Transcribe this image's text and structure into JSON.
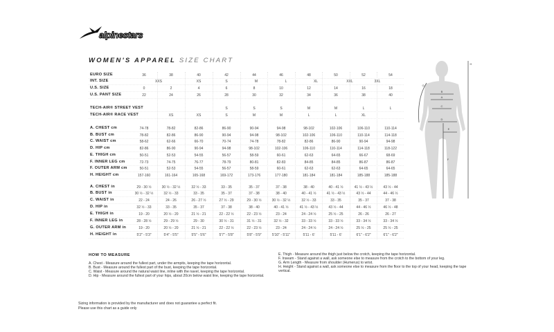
{
  "brand": {
    "logo_text": "alpinestars"
  },
  "title": {
    "bold": "WOMEN'S APPAREL",
    "light": "SIZE CHART"
  },
  "columns": [
    "36",
    "38",
    "40",
    "42",
    "44",
    "46",
    "48",
    "50",
    "52",
    "54"
  ],
  "rows": [
    {
      "label": "EURO SIZE",
      "values": [
        "36",
        "38",
        "40",
        "42",
        "44",
        "46",
        "48",
        "50",
        "52",
        "54"
      ]
    },
    {
      "label": "INT. SIZE",
      "spans": [
        "XXS",
        "XS",
        "S",
        "M",
        "L",
        "XL",
        "XXL",
        "3XL"
      ]
    },
    {
      "label": "U.S. SIZE",
      "values": [
        "0",
        "2",
        "4",
        "6",
        "8",
        "10",
        "12",
        "14",
        "16",
        "18"
      ]
    },
    {
      "label": "U.S. PANT SIZE",
      "values": [
        "22",
        "24",
        "26",
        "28",
        "30",
        "32",
        "34",
        "36",
        "38",
        "40"
      ]
    },
    {
      "label": "TECH-AIR® STREET VEST",
      "values": [
        "",
        "",
        "",
        "S",
        "S",
        "S",
        "M",
        "M",
        "L",
        "L"
      ]
    },
    {
      "label": "TECH-AIR® RACE VEST",
      "values": [
        "",
        "XS",
        "XS",
        "S",
        "M",
        "M",
        "L",
        "L",
        "XL",
        ""
      ]
    },
    {
      "label": "A. CHEST cm",
      "values": [
        "74-78",
        "78-82",
        "82-86",
        "86-90",
        "90-94",
        "94-98",
        "98-102",
        "102-106",
        "106-110",
        "110-114"
      ]
    },
    {
      "label": "B. BUST cm",
      "values": [
        "78-82",
        "82-86",
        "86-90",
        "90-94",
        "94-98",
        "98-102",
        "102-106",
        "106-110",
        "110-114",
        "114-118"
      ]
    },
    {
      "label": "C. WAIST cm",
      "values": [
        "58-62",
        "62-66",
        "66-70",
        "70-74",
        "74-78",
        "78-82",
        "82-86",
        "86-90",
        "90-94",
        "94-98"
      ]
    },
    {
      "label": "D. HIP cm",
      "values": [
        "82-86",
        "86-90",
        "90-94",
        "94-98",
        "98-102",
        "102-106",
        "106-110",
        "110-114",
        "114-118",
        "118-122"
      ]
    },
    {
      "label": "E. THIGH cm",
      "values": [
        "50-51",
        "52-53",
        "54-55",
        "56-57",
        "58-59",
        "60-61",
        "62-63",
        "64-65",
        "66-67",
        "68-69"
      ]
    },
    {
      "label": "F. INNER LEG cm",
      "values": [
        "72-73",
        "74-75",
        "76-77",
        "78-79",
        "80-81",
        "82-83",
        "84-85",
        "84-85",
        "86-87",
        "86-87"
      ]
    },
    {
      "label": "F. OUTER ARM cm",
      "values": [
        "50-51",
        "52-53",
        "54-55",
        "56-57",
        "58-59",
        "60-61",
        "62-63",
        "62-63",
        "64-65",
        "64-65"
      ]
    },
    {
      "label": "H. HEIGHT cm",
      "values": [
        "157-160",
        "161-164",
        "165-168",
        "169-172",
        "173-176",
        "177-180",
        "181-184",
        "181-184",
        "185-188",
        "185-188"
      ]
    },
    {
      "label": "A. CHEST in",
      "values": [
        "29 - 30 ½",
        "30 ½ - 32 ½",
        "32 ½ - 33",
        "33 - 35",
        "35 - 37",
        "37 - 38",
        "38 - 40",
        "40 - 41 ½",
        "41 ½ - 43 ½",
        "43 ½ - 44"
      ]
    },
    {
      "label": "B. BUST in",
      "values": [
        "30 ½ - 32 ½",
        "32 ½ - 33",
        "33 - 35",
        "35 - 37",
        "37 - 38",
        "38 - 40",
        "40 - 41 ½",
        "41 ½ - 43 ½",
        "43 ½ - 44",
        "44 - 46 ½"
      ]
    },
    {
      "label": "C. WAIST in",
      "values": [
        "22 - 24",
        "24 - 26",
        "26 - 27 ½",
        "27 ½ - 29",
        "29 - 30 ½",
        "30 ½ - 32 ½",
        "32 ½ - 33",
        "33 - 35",
        "35 - 37",
        "37 - 38"
      ]
    },
    {
      "label": "D. HIP in",
      "values": [
        "32 ½ - 33",
        "33 - 35",
        "35 - 37",
        "37 - 38",
        "38 - 40",
        "40 - 41 ½",
        "41 ½ - 43 ½",
        "43 ½ - 44",
        "44 - 46 ½",
        "46 ½ - 48"
      ]
    },
    {
      "label": "E. THIGH in",
      "values": [
        "19 - 20",
        "20 ½ - 20",
        "21 ½ - 21",
        "22 - 22 ½",
        "22 - 23 ½",
        "23 - 24",
        "24 - 24 ½",
        "25 ½ - 25",
        "26 - 26",
        "26 - 27"
      ]
    },
    {
      "label": "F. INNER LEG in",
      "values": [
        "28 - 28 ½",
        "29 - 29 ½",
        "29 - 30",
        "30 ½ - 31",
        "31 ½ - 31",
        "32 ½ - 32",
        "33 - 33 ½",
        "33 - 33 ½",
        "33 - 34 ½",
        "33 - 34 ½"
      ]
    },
    {
      "label": "G. OUTER ARM in",
      "values": [
        "19 - 20",
        "20 ½ - 20",
        "21 ½ - 21",
        "22 - 22 ½",
        "22 - 23 ½",
        "23 - 24",
        "24 - 24 ½",
        "24 - 24 ½",
        "25 ½ - 25",
        "25 ½ - 25"
      ]
    },
    {
      "label": "H. HEIGHT in",
      "values": [
        "5'2\" - 5'3\"",
        "5'4\" - 5'5\"",
        "5'5\" - 5'6\"",
        "5'7\" - 5'8\"",
        "5'8\" - 5'9\"",
        "5'10\" - 5'11\"",
        "5'11 - 6'",
        "5'11 - 6'",
        "6'1\" - 6'2\"",
        "6'1\" - 6'2\""
      ]
    }
  ],
  "how_to_measure": {
    "heading": "HOW TO MEASURE",
    "left": [
      "A. Chest - Measure around the fullest part, under the armpits, keeping the tape horizontal.",
      "B. Bust - Measure around the fullest part of the bust, keeping the tape horizontal.",
      "C. Waist - Measure around the natural waist line, inline with the navel, keeping the tape horizontal.",
      "D. Hip - Measure around the fullest part of your hips, about 20cm below waist line, keeping the tape horizontal."
    ],
    "right": [
      "E. Thigh - Measure around the thigh just below the crotch, keeping the tape horizontal.",
      "F. Inseam - Stand against a wall, ask someone else to measure from the crotch to the bottom of your leg.",
      "G. Arm Length - Measure from shoulder (Humerus) to wrist.",
      "H. Height - Stand against a wall, ask someone else to measure from the floor to the top of your head, keeping the tape",
      "vertical."
    ]
  },
  "disclaimer": [
    "Sizing information is provided by the manufacturer and does not guarantee a perfect fit.",
    "Please use this chart as a guide only"
  ],
  "figure_labels": {
    "a": "A",
    "b": "B",
    "c": "C",
    "d": "D",
    "e": "E",
    "f": "F",
    "g": "G",
    "h": "H"
  },
  "colors": {
    "text": "#222222",
    "figure": "#d9d9d9",
    "lines": "#555555"
  }
}
